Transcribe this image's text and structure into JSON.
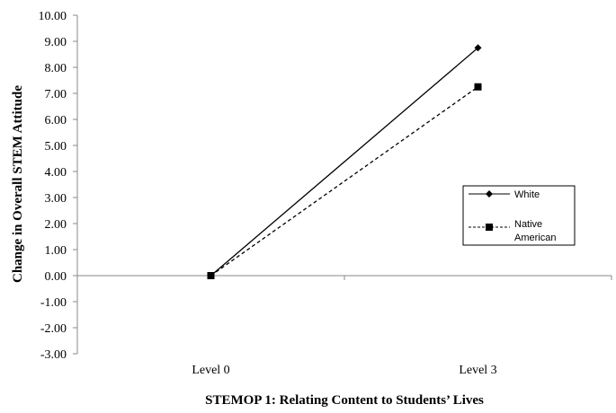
{
  "chart_data": {
    "type": "line",
    "title": "",
    "xlabel": "STEMOP 1: Relating Content to Students’ Lives",
    "ylabel": "Change in Overall STEM Attitude",
    "categories": [
      "Level 0",
      "Level 3"
    ],
    "ylim": [
      -3,
      10
    ],
    "ytick_step": 1,
    "ytick_labels": [
      "-3.00",
      "-2.00",
      "-1.00",
      "0.00",
      "1.00",
      "2.00",
      "3.00",
      "4.00",
      "5.00",
      "6.00",
      "7.00",
      "8.00",
      "9.00",
      "10.00"
    ],
    "grid": false,
    "legend_position": "right",
    "series": [
      {
        "name": "White",
        "values": [
          0.0,
          8.75
        ],
        "marker": "diamond",
        "line_style": "solid",
        "color": "#000000"
      },
      {
        "name": "Native American",
        "values": [
          0.0,
          7.25
        ],
        "marker": "square",
        "line_style": "dashed",
        "color": "#000000"
      }
    ],
    "legend": {
      "white_label": "White",
      "native_label_line1": "Native",
      "native_label_line2": "American"
    }
  }
}
